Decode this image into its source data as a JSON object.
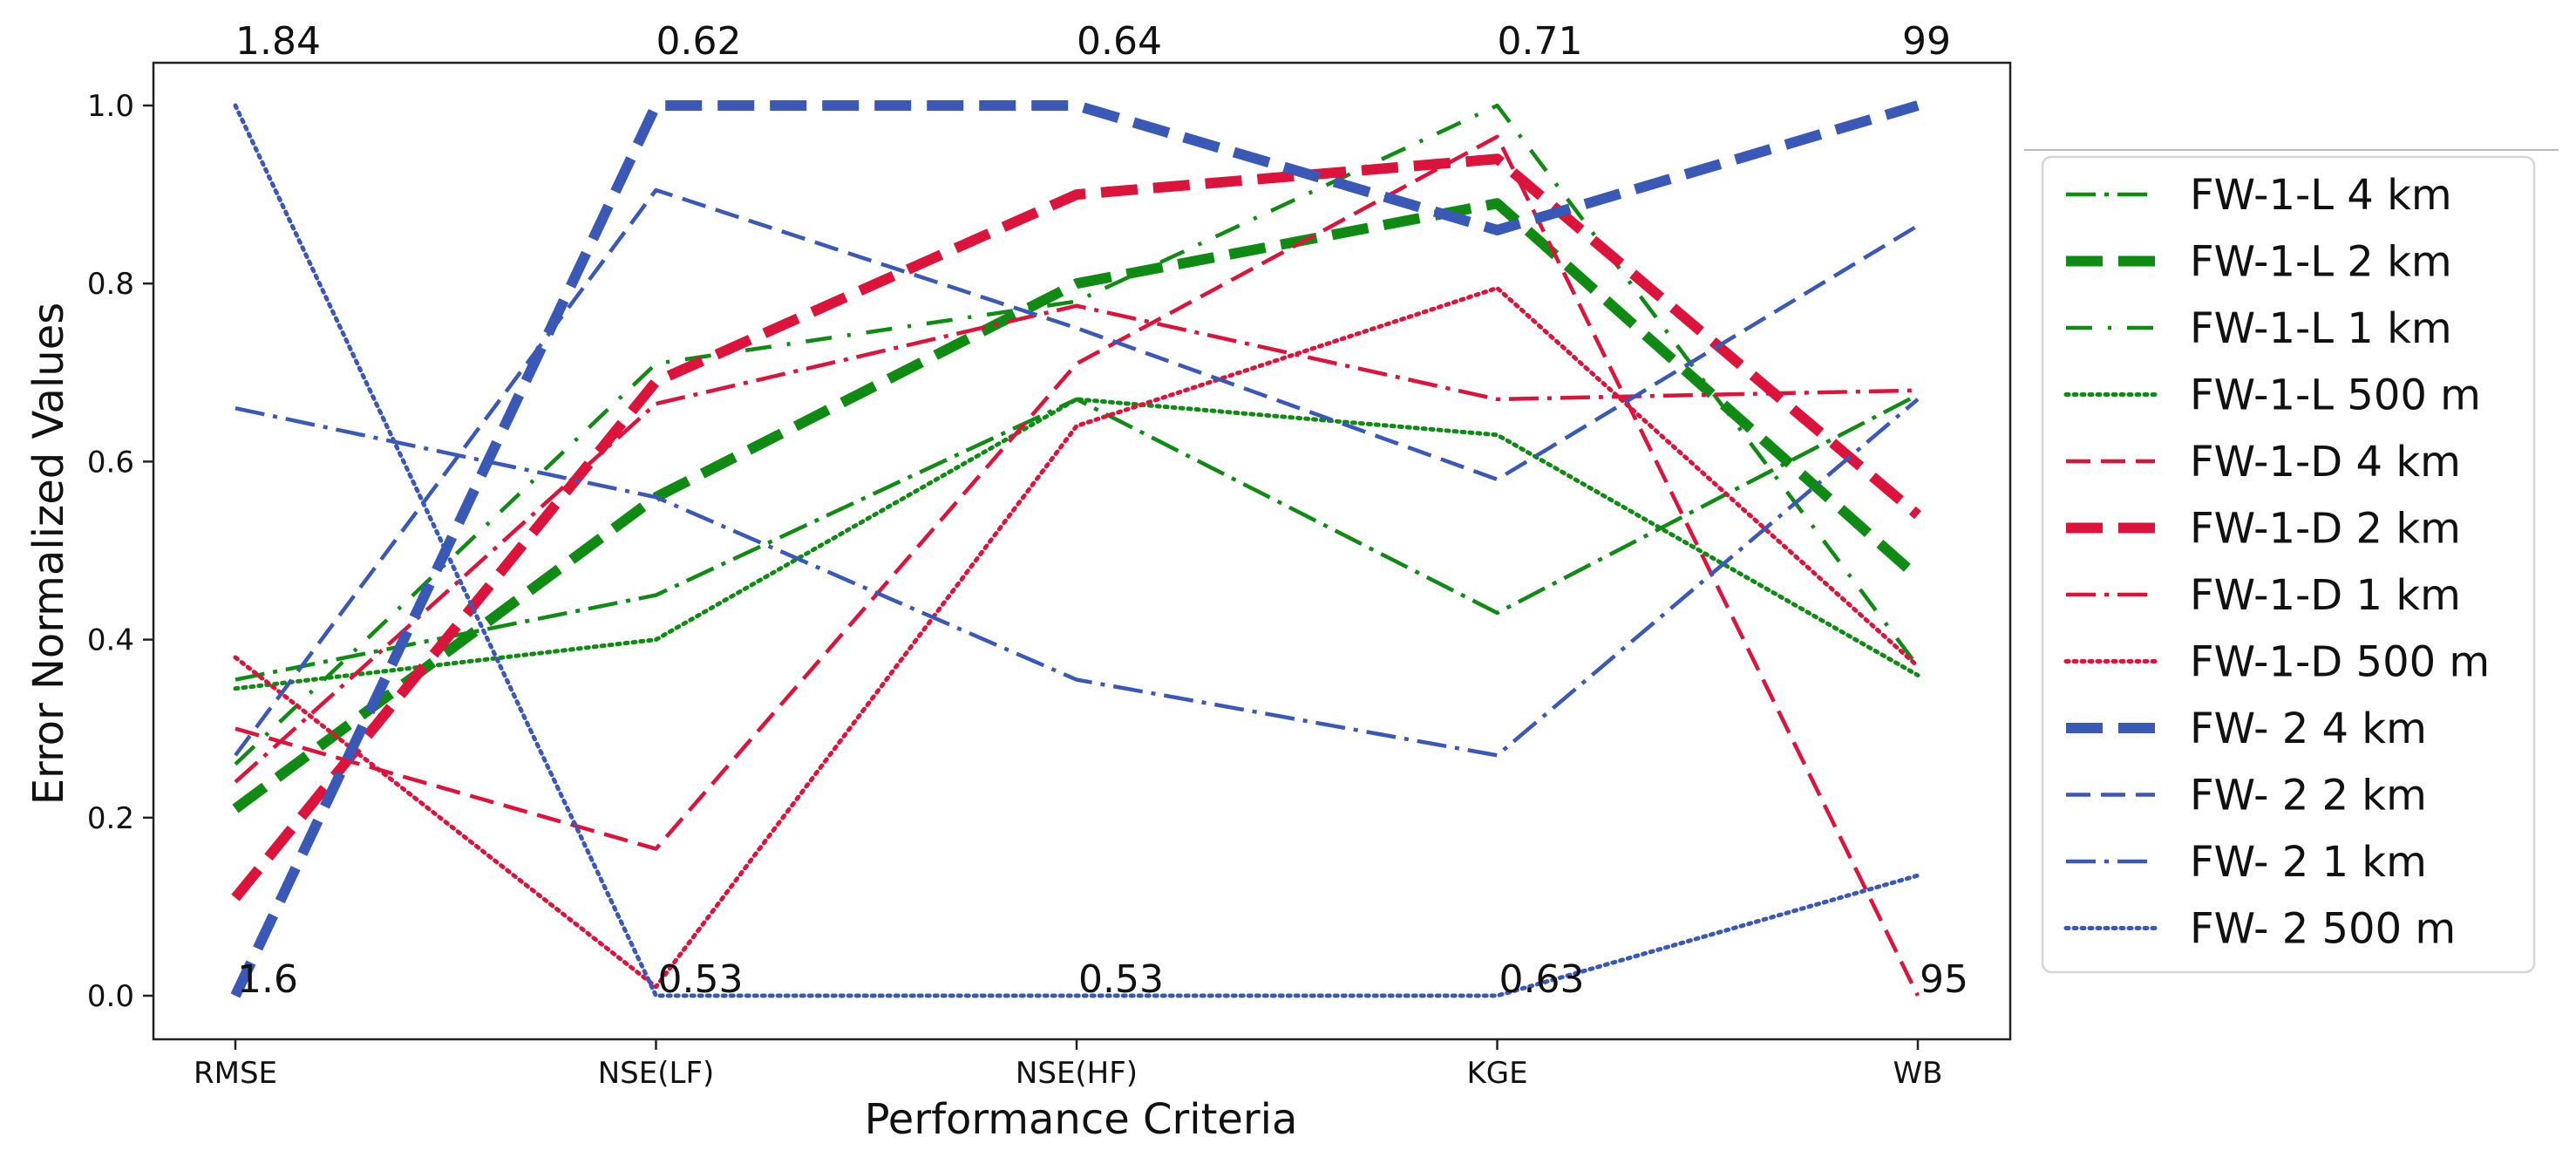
{
  "chart_data": {
    "type": "line",
    "title": "",
    "xlabel": "Performance Criteria",
    "ylabel": "Error Normalized Values",
    "categories": [
      "RMSE",
      "NSE(LF)",
      "NSE(HF)",
      "KGE",
      "WB"
    ],
    "ylim": [
      -0.05,
      1.05
    ],
    "yticks": [
      "0.0",
      "0.2",
      "0.4",
      "0.6",
      "0.8",
      "1.0"
    ],
    "top_annotations": [
      "1.84",
      "0.62",
      "0.64",
      "0.71",
      "99"
    ],
    "bottom_annotations": [
      "1.6",
      "0.53",
      "0.53",
      "0.63",
      "95"
    ],
    "legend_position": "right",
    "colors": {
      "green": "#0f8a12",
      "red": "#dc143c",
      "blue": "#3a58b6"
    },
    "series": [
      {
        "name": "FW-1-L 4 km",
        "color": "#0f8a12",
        "style": "dashdot",
        "width": "thin",
        "values": [
          0.355,
          0.45,
          0.67,
          0.43,
          0.675
        ]
      },
      {
        "name": "FW-1-L 2 km",
        "color": "#0f8a12",
        "style": "dashed",
        "width": "thick",
        "values": [
          0.21,
          0.56,
          0.8,
          0.89,
          0.47
        ]
      },
      {
        "name": "FW-1-L 1 km",
        "color": "#0f8a12",
        "style": "loosedashdot",
        "width": "thin",
        "values": [
          0.26,
          0.71,
          0.78,
          1.0,
          0.37
        ]
      },
      {
        "name": "FW-1-L 500 m",
        "color": "#0f8a12",
        "style": "dotted",
        "width": "thin",
        "values": [
          0.345,
          0.4,
          0.67,
          0.63,
          0.36
        ]
      },
      {
        "name": "FW-1-D 4 km",
        "color": "#dc143c",
        "style": "dashed",
        "width": "thin",
        "values": [
          0.3,
          0.165,
          0.71,
          0.965,
          0.0
        ]
      },
      {
        "name": "FW-1-D 2 km",
        "color": "#dc143c",
        "style": "dashed",
        "width": "thick",
        "values": [
          0.11,
          0.69,
          0.9,
          0.94,
          0.54
        ]
      },
      {
        "name": "FW-1-D 1 km",
        "color": "#dc143c",
        "style": "dashdot",
        "width": "thin",
        "values": [
          0.24,
          0.665,
          0.775,
          0.67,
          0.68
        ]
      },
      {
        "name": "FW-1-D 500 m",
        "color": "#dc143c",
        "style": "dotted",
        "width": "thin",
        "values": [
          0.38,
          0.01,
          0.64,
          0.795,
          0.37
        ]
      },
      {
        "name": "FW- 2 4 km",
        "color": "#3a58b6",
        "style": "dashed",
        "width": "thick",
        "values": [
          0.0,
          1.0,
          1.0,
          0.86,
          1.0
        ]
      },
      {
        "name": "FW- 2 2 km",
        "color": "#3a58b6",
        "style": "dashed",
        "width": "thin",
        "values": [
          0.27,
          0.905,
          0.75,
          0.58,
          0.865
        ]
      },
      {
        "name": "FW- 2 1 km",
        "color": "#3a58b6",
        "style": "dashdot",
        "width": "thin",
        "values": [
          0.66,
          0.56,
          0.355,
          0.27,
          0.67
        ]
      },
      {
        "name": "FW- 2 500 m",
        "color": "#3a58b6",
        "style": "dotted",
        "width": "thin",
        "values": [
          1.0,
          0.0,
          0.0,
          0.0,
          0.135
        ]
      }
    ]
  }
}
